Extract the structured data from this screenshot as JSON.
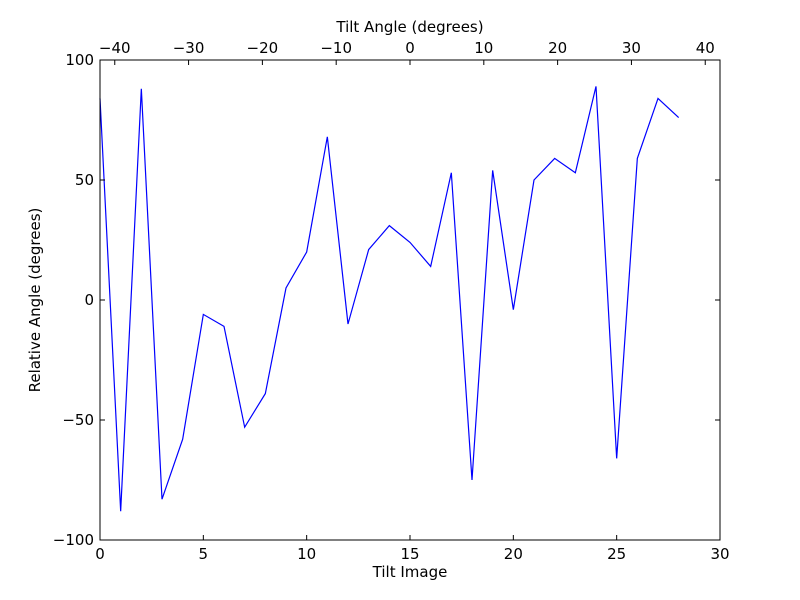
{
  "chart_data": {
    "type": "line",
    "xlabel": "Tilt Image",
    "ylabel": "Relative Angle (degrees)",
    "top_xlabel": "Tilt Angle (degrees)",
    "xlim": [
      0,
      30
    ],
    "ylim": [
      -100,
      100
    ],
    "top_xlim": [
      -42,
      42
    ],
    "x_ticks": [
      0,
      5,
      10,
      15,
      20,
      25,
      30
    ],
    "y_ticks": [
      -100,
      -50,
      0,
      50,
      100
    ],
    "top_x_ticks": [
      -40,
      -30,
      -20,
      -10,
      0,
      10,
      20,
      30,
      40
    ],
    "x_tick_labels": [
      "0",
      "5",
      "10",
      "15",
      "20",
      "25",
      "30"
    ],
    "y_tick_labels": [
      "−100",
      "−50",
      "0",
      "50",
      "100"
    ],
    "top_x_tick_labels": [
      "−40",
      "−30",
      "−20",
      "−10",
      "0",
      "10",
      "20",
      "30",
      "40"
    ],
    "grid": false,
    "series": [
      {
        "color": "#0000ff",
        "x": [
          0,
          1,
          2,
          3,
          4,
          5,
          6,
          7,
          8,
          9,
          10,
          11,
          12,
          13,
          14,
          15,
          16,
          17,
          18,
          19,
          20,
          21,
          22,
          23,
          24,
          25,
          26,
          27,
          28
        ],
        "values": [
          84,
          -88,
          88,
          -83,
          -58,
          -6,
          -11,
          -53,
          -39,
          5,
          20,
          68,
          -10,
          21,
          31,
          24,
          14,
          53,
          -75,
          54,
          -4,
          50,
          59,
          53,
          89,
          -66,
          59,
          84,
          76
        ]
      }
    ]
  }
}
